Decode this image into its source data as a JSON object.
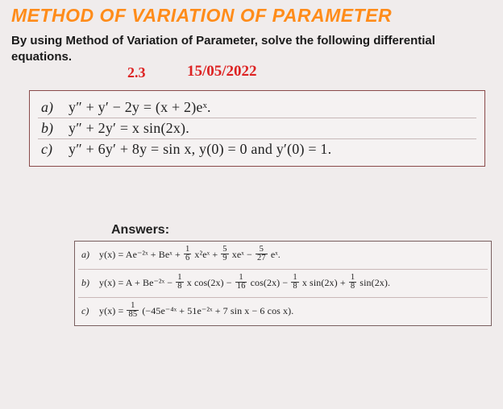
{
  "title": "METHOD OF VARIATION OF PARAMETER",
  "instruction": "By using Method of Variation of Parameter, solve the following differential equations.",
  "handwritten": {
    "section": "2.3",
    "date": "15/05/2022"
  },
  "problems": [
    {
      "label": "a)",
      "equation": "y″ + y′ − 2y = (x + 2)eˣ."
    },
    {
      "label": "b)",
      "equation": "y″ + 2y′ = x sin(2x)."
    },
    {
      "label": "c)",
      "equation": "y″ + 6y′ + 8y = sin x,  y(0) = 0  and  y′(0) = 1."
    }
  ],
  "answers_label": "Answers:",
  "answers": [
    {
      "label": "a)",
      "prefix": "y(x) = Ae⁻²ˣ + Beˣ + ",
      "frac1": {
        "n": "1",
        "d": "6"
      },
      "mid1": "x²eˣ + ",
      "frac2": {
        "n": "5",
        "d": "9"
      },
      "mid2": "xeˣ − ",
      "frac3": {
        "n": "5",
        "d": "27"
      },
      "suffix": "eˣ."
    },
    {
      "label": "b)",
      "prefix": "y(x) = A + Be⁻²ˣ − ",
      "frac1": {
        "n": "1",
        "d": "8"
      },
      "mid1": "x cos(2x) − ",
      "frac2": {
        "n": "1",
        "d": "16"
      },
      "mid2": "cos(2x) − ",
      "frac3": {
        "n": "1",
        "d": "8"
      },
      "mid3": "x sin(2x) + ",
      "frac4": {
        "n": "1",
        "d": "8"
      },
      "suffix": "sin(2x)."
    },
    {
      "label": "c)",
      "prefix": "y(x) = ",
      "frac1": {
        "n": "1",
        "d": "85"
      },
      "mid1": "(−45e⁻⁴ˣ + 51e⁻²ˣ + 7 sin x − 6 cos x)."
    }
  ],
  "colors": {
    "title": "#ff8c1a",
    "handwritten": "#d22",
    "box_border": "#8a4a4a",
    "page_bg": "#f0ecec"
  }
}
